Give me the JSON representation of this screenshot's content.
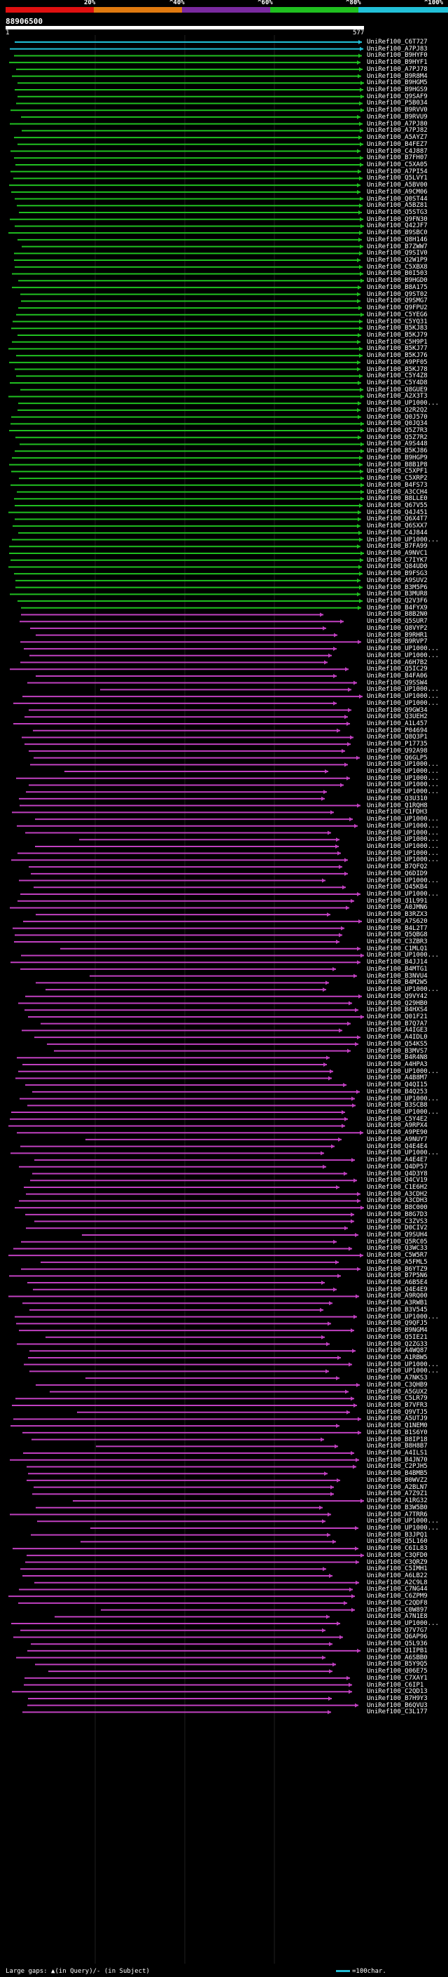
{
  "legend": {
    "ticks": [
      "20%",
      "^40%",
      "^60%",
      "^80%",
      "^100%"
    ],
    "colors": [
      "#e01010",
      "#e07a10",
      "#7a2aa0",
      "#20c020",
      "#22c0d8"
    ]
  },
  "query": {
    "id": "88906500",
    "start": "1",
    "end": "577"
  },
  "colors": {
    "cyan": "#22c0d8",
    "green": "#20c020",
    "magenta": "#c040c0"
  },
  "hits": [
    "UniRef100_C6T727",
    "UniRef100_A7PJ83",
    "UniRef100_B9HYF0",
    "UniRef100_B9HYF1",
    "UniRef100_A7PJ78",
    "UniRef100_B9R8M4",
    "UniRef100_B9HGM5",
    "UniRef100_B9HGS9",
    "UniRef100_Q9SAF9",
    "UniRef100_P5B034",
    "UniRef100_B9RVV0",
    "UniRef100_B9RVU9",
    "UniRef100_A7PJ80",
    "UniRef100_A7PJ82",
    "UniRef100_A5AYZ7",
    "UniRef100_B4FEZ7",
    "UniRef100_C4J887",
    "UniRef100_B7FH07",
    "UniRef100_C5XA05",
    "UniRef100_A7PI54",
    "UniRef100_Q5LVY1",
    "UniRef100_A5BV00",
    "UniRef100_A9CM06",
    "UniRef100_Q0ST44",
    "UniRef100_A5BZ81",
    "UniRef100_Q5STG3",
    "UniRef100_Q9FN30",
    "UniRef100_Q42JF7",
    "UniRef100_B9SBC0",
    "UniRef100_Q8H146",
    "UniRef100_B7ZWW7",
    "UniRef100_Q9SIV0",
    "UniRef100_Q2W1P9",
    "UniRef100_C5XBX8",
    "UniRef100_B0I503",
    "UniRef100_B9HGD0",
    "UniRef100_B8A175",
    "UniRef100_Q9ST02",
    "UniRef100_Q9SMG7",
    "UniRef100_Q9FPU2",
    "UniRef100_C5YEG6",
    "UniRef100_C5YQ31",
    "UniRef100_B5KJ83",
    "UniRef100_B5KJ79",
    "UniRef100_C5H9P1",
    "UniRef100_B5KJ77",
    "UniRef100_B5KJ76",
    "UniRef100_A9PF05",
    "UniRef100_B5KJ78",
    "UniRef100_C5Y4Z8",
    "UniRef100_C5Y4D8",
    "UniRef100_Q8GUE9",
    "UniRef100_A2X3T3",
    "UniRef100_UP1000...",
    "UniRef100_Q2R2Q2",
    "UniRef100_Q0J570",
    "UniRef100_Q0JQ34",
    "UniRef100_Q5Z7R3",
    "UniRef100_Q5Z7R2",
    "UniRef100_A9S448",
    "UniRef100_B5KJ86",
    "UniRef100_B9HGP9",
    "UniRef100_B8B1P8",
    "UniRef100_C5XPF1",
    "UniRef100_C5XRP2",
    "UniRef100_B4FS73",
    "UniRef100_A3CCH4",
    "UniRef100_B8LLE0",
    "UniRef100_Q67V55",
    "UniRef100_Q4J451",
    "UniRef100_Q6X4T7",
    "UniRef100_Q6SXX7",
    "UniRef100_C4J844",
    "UniRef100_UP1000...",
    "UniRef100_B7FA99",
    "UniRef100_A9NVC1",
    "UniRef100_C7IYK7",
    "UniRef100_Q84UD0",
    "UniRef100_B9FSG3",
    "UniRef100_A9SUV2",
    "UniRef100_B3M5P6",
    "UniRef100_B3MUR8",
    "UniRef100_Q2V3F6",
    "UniRef100_B4FYX9",
    "UniRef100_B8B2N0",
    "UniRef100_Q5SUR7",
    "UniRef100_Q8VYP2",
    "UniRef100_B9RHR1",
    "UniRef100_B9RVP7",
    "UniRef100_UP1000...",
    "UniRef100_UP1000...",
    "UniRef100_A6H7B2",
    "UniRef100_Q5IC29",
    "UniRef100_B4FA06",
    "UniRef100_Q9SSW4",
    "UniRef100_UP1000...",
    "UniRef100_UP1000...",
    "UniRef100_UP1000...",
    "UniRef100_Q9GW34",
    "UniRef100_Q3UEH2",
    "UniRef100_A1L457",
    "UniRef100_P04694",
    "UniRef100_Q8Q3P1",
    "UniRef100_P17735",
    "UniRef100_Q92A98",
    "UniRef100_Q6GLP5",
    "UniRef100_UP1000...",
    "UniRef100_UP1000...",
    "UniRef100_UP1000...",
    "UniRef100_UP1000...",
    "UniRef100_UP1000...",
    "UniRef100_Q3U310",
    "UniRef100_Q1RQH8",
    "UniRef100_C1FDH3",
    "UniRef100_UP1000...",
    "UniRef100_UP1000...",
    "UniRef100_UP1000...",
    "UniRef100_UP1000...",
    "UniRef100_UP1000...",
    "UniRef100_UP1000...",
    "UniRef100_UP1000...",
    "UniRef100_B7QFQ2",
    "UniRef100_Q6DID9",
    "UniRef100_UP1000...",
    "UniRef100_Q45KB4",
    "UniRef100_UP1000...",
    "UniRef100_Q1L991",
    "UniRef100_A0JMN6",
    "UniRef100_B3RZX3",
    "UniRef100_A7S620",
    "UniRef100_B4L2T7",
    "UniRef100_Q5QBG8",
    "UniRef100_C3ZBR3",
    "UniRef100_C1MLQ1",
    "UniRef100_UP1000...",
    "UniRef100_B4JJ14",
    "UniRef100_B4MTG1",
    "UniRef100_B3NVU4",
    "UniRef100_B4M2W5",
    "UniRef100_UP1000...",
    "UniRef100_Q9VY42",
    "UniRef100_Q29HB0",
    "UniRef100_B4HXS4",
    "UniRef100_Q01F21",
    "UniRef100_B7Q7A7",
    "UniRef100_A4IGE3",
    "UniRef100_A4IDL0",
    "UniRef100_Q54KS5",
    "UniRef100_B3MVS7",
    "UniRef100_B4R4N8",
    "UniRef100_A4HPA3",
    "UniRef100_UP1000...",
    "UniRef100_A4B8M7",
    "UniRef100_Q4QI15",
    "UniRef100_B4Q253",
    "UniRef100_UP1000...",
    "UniRef100_B3SCB8",
    "UniRef100_UP1000...",
    "UniRef100_C5Y4E2",
    "UniRef100_A9RPX4",
    "UniRef100_A9PE90",
    "UniRef100_A9NUY7",
    "UniRef100_Q4E4E4",
    "UniRef100_UP1000...",
    "UniRef100_A4E4E7",
    "UniRef100_Q4DP57",
    "UniRef100_Q4D3Y8",
    "UniRef100_Q4CV19",
    "UniRef100_C1E6H2",
    "UniRef100_A3CDH2",
    "UniRef100_A3CDH3",
    "UniRef100_B8C000",
    "UniRef100_B8G7D3",
    "UniRef100_C3ZVS3",
    "UniRef100_D0CIV2",
    "UniRef100_Q9SUH4",
    "UniRef100_Q5RC05",
    "UniRef100_Q3WC33",
    "UniRef100_C5W5R7",
    "UniRef100_A5FML5",
    "UniRef100_B6YTZ9",
    "UniRef100_B7P5N6",
    "UniRef100_A6B5E4",
    "UniRef100_Q4E4E9",
    "UniRef100_A9RQ00",
    "UniRef100_A3RWB1",
    "UniRef100_B3V545",
    "UniRef100_UP1000...",
    "UniRef100_Q9QFJ5",
    "UniRef100_B9NGM4",
    "UniRef100_Q5IE21",
    "UniRef100_Q2ZG33",
    "UniRef100_A4WQ87",
    "UniRef100_A1RBW5",
    "UniRef100_UP1000...",
    "UniRef100_UP1000...",
    "UniRef100_A7NKS3",
    "UniRef100_C3QHB9",
    "UniRef100_A5GUX2",
    "UniRef100_C5LR79",
    "UniRef100_B7VFR3",
    "UniRef100_Q9VTJ5",
    "UniRef100_A5UTJ9",
    "UniRef100_Q1NEM0",
    "UniRef100_B1S6Y0",
    "UniRef100_B8IP18",
    "UniRef100_B8H8B7",
    "UniRef100_A4ILS1",
    "UniRef100_B4JN70",
    "UniRef100_C2PJH5",
    "UniRef100_B4BMB5",
    "UniRef100_B0WVZ2",
    "UniRef100_A2BLN7",
    "UniRef100_A7Z9Z1",
    "UniRef100_A1RG32",
    "UniRef100_B3W5B0",
    "UniRef100_A7TRR6",
    "UniRef100_UP1000...",
    "UniRef100_UP1000...",
    "UniRef100_B3JPQ1",
    "UniRef100_Q5L160",
    "UniRef100_C6IL83",
    "UniRef100_C3QFD0",
    "UniRef100_C3QRZ9",
    "UniRef100_C5IMH1",
    "UniRef100_A6LB22",
    "UniRef100_A2C9L8",
    "UniRef100_C7NG44",
    "UniRef100_C6ZPM9",
    "UniRef100_C2QDF8",
    "UniRef100_C0W897",
    "UniRef100_A7N1E8",
    "UniRef100_UP1000...",
    "UniRef100_Q7V7G7",
    "UniRef100_Q6AP96",
    "UniRef100_Q5L936",
    "UniRef100_Q1IPB1",
    "UniRef100_A6SBB0",
    "UniRef100_B5Y9Q5",
    "UniRef100_Q06E75",
    "UniRef100_C7XAY1",
    "UniRef100_C6IP1",
    "UniRef100_C2QD13",
    "UniRef100_B7H9Y3",
    "UniRef100_B6QVU3",
    "UniRef100_C3L177"
  ],
  "footer": {
    "text": "Large gaps: ▲(in Query)/- (in Subject)",
    "scale": "=100char."
  }
}
